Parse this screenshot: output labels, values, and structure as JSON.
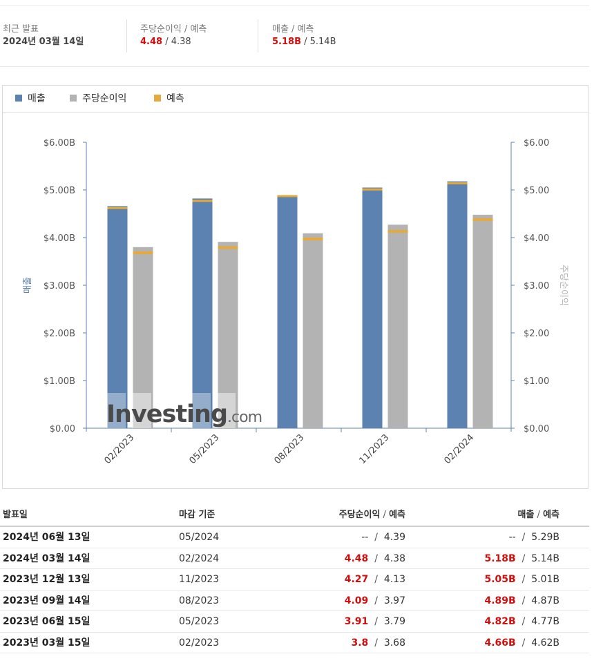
{
  "summary": {
    "recent_label": "최근 발표",
    "recent_date": "2024년 03월 14일",
    "eps_label": "주당순이익 / 예측",
    "eps_actual": "4.48",
    "eps_forecast": " / 4.38",
    "rev_label": "매출 / 예측",
    "rev_actual": "5.18B",
    "rev_forecast": " / 5.14B"
  },
  "legend": {
    "revenue": "매출",
    "eps": "주당순이익",
    "forecast": "예측"
  },
  "colors": {
    "revenue": "#5b82b0",
    "eps": "#b3b3b3",
    "forecast": "#e6a93b",
    "red": "#d10e0e",
    "axis": "#5b82b0"
  },
  "watermark": "Investing.com",
  "chart_data": {
    "type": "bar",
    "categories": [
      "02/2023",
      "05/2023",
      "08/2023",
      "11/2023",
      "02/2024"
    ],
    "series": [
      {
        "name": "매출",
        "axis": "left",
        "values": [
          4.66,
          4.82,
          4.89,
          5.05,
          5.18
        ],
        "forecast": [
          4.62,
          4.77,
          4.87,
          5.01,
          5.14
        ]
      },
      {
        "name": "주당순이익",
        "axis": "right",
        "values": [
          3.8,
          3.91,
          4.09,
          4.27,
          4.48
        ],
        "forecast": [
          3.68,
          3.79,
          3.97,
          4.13,
          4.38
        ]
      }
    ],
    "ylabel_left": "매출",
    "ylabel_right": "주당순이익",
    "ylim": [
      0,
      6
    ],
    "yticks_left": [
      "$0.00",
      "$1.00B",
      "$2.00B",
      "$3.00B",
      "$4.00B",
      "$5.00B",
      "$6.00B"
    ],
    "yticks_right": [
      "$0.00",
      "$1.00",
      "$2.00",
      "$3.00",
      "$4.00",
      "$5.00",
      "$6.00"
    ],
    "grid": false
  },
  "table": {
    "headers": {
      "date": "발표일",
      "period": "마감 기준",
      "eps": "주당순이익",
      "eps_fc": "예측",
      "rev": "매출",
      "rev_fc": "예측"
    },
    "rows": [
      {
        "date": "2024년 06월 13일",
        "period": "05/2024",
        "eps": "--",
        "eps_fc": "4.39",
        "rev": "--",
        "rev_fc": "5.29B",
        "highlight": false
      },
      {
        "date": "2024년 03월 14일",
        "period": "02/2024",
        "eps": "4.48",
        "eps_fc": "4.38",
        "rev": "5.18B",
        "rev_fc": "5.14B",
        "highlight": true
      },
      {
        "date": "2023년 12월 13일",
        "period": "11/2023",
        "eps": "4.27",
        "eps_fc": "4.13",
        "rev": "5.05B",
        "rev_fc": "5.01B",
        "highlight": true
      },
      {
        "date": "2023년 09월 14일",
        "period": "08/2023",
        "eps": "4.09",
        "eps_fc": "3.97",
        "rev": "4.89B",
        "rev_fc": "4.87B",
        "highlight": true
      },
      {
        "date": "2023년 06월 15일",
        "period": "05/2023",
        "eps": "3.91",
        "eps_fc": "3.79",
        "rev": "4.82B",
        "rev_fc": "4.77B",
        "highlight": true
      },
      {
        "date": "2023년 03월 15일",
        "period": "02/2023",
        "eps": "3.8",
        "eps_fc": "3.68",
        "rev": "4.66B",
        "rev_fc": "4.62B",
        "highlight": true
      }
    ]
  }
}
